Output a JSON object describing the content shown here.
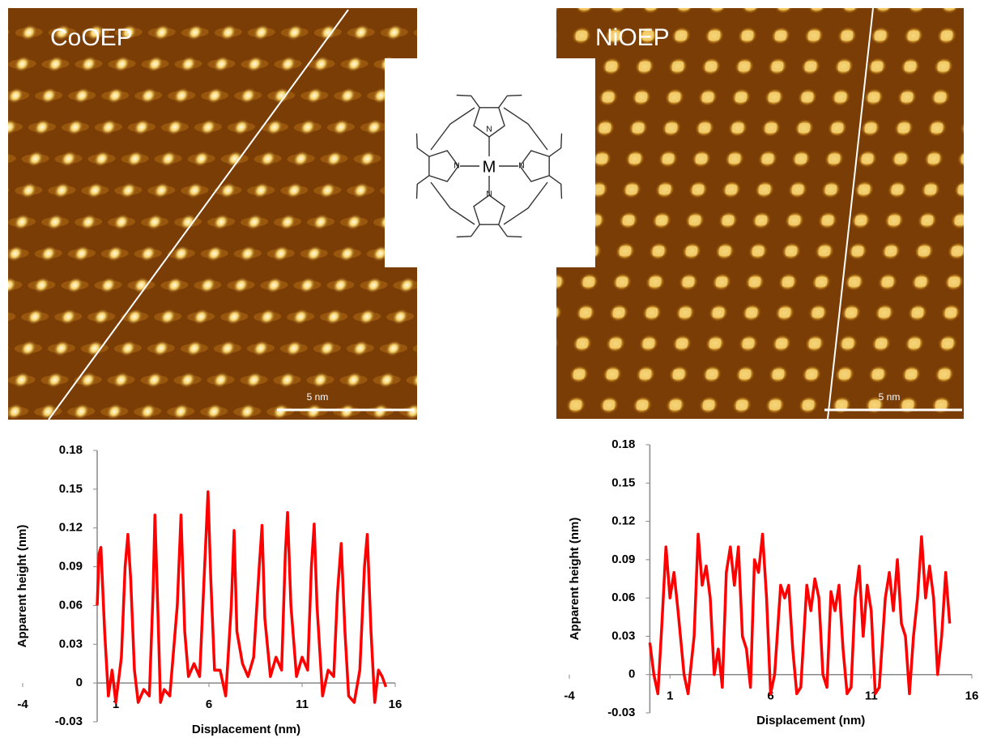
{
  "panels": [
    {
      "label": "CoOEP",
      "scale_bar": "5 nm"
    },
    {
      "label": "NiOEP",
      "scale_bar": "5 nm"
    }
  ],
  "molecule": {
    "metal": "M",
    "nitrogen": "N"
  },
  "chart_data": [
    {
      "type": "line",
      "color": "#ff0000",
      "xlabel": "Displacement (nm)",
      "ylabel": "Apparent height (nm)",
      "xlim": [
        -4,
        16
      ],
      "xticks": [
        -4,
        1,
        6,
        11,
        16
      ],
      "ylim": [
        -0.03,
        0.18
      ],
      "yticks": [
        -0.03,
        0,
        0.03,
        0.06,
        0.09,
        0.12,
        0.15,
        0.18
      ],
      "x": [
        0,
        0.1,
        0.2,
        0.4,
        0.6,
        0.8,
        1.0,
        1.3,
        1.5,
        1.65,
        1.8,
        2.0,
        2.2,
        2.5,
        2.8,
        3.0,
        3.1,
        3.25,
        3.4,
        3.6,
        3.9,
        4.3,
        4.5,
        4.7,
        4.9,
        5.2,
        5.5,
        5.8,
        5.95,
        6.1,
        6.3,
        6.6,
        6.9,
        7.2,
        7.35,
        7.5,
        7.8,
        8.1,
        8.4,
        8.7,
        8.85,
        9.0,
        9.3,
        9.6,
        9.9,
        10.1,
        10.22,
        10.4,
        10.7,
        11.0,
        11.3,
        11.5,
        11.65,
        11.8,
        12.1,
        12.4,
        12.7,
        12.9,
        13.1,
        13.3,
        13.5,
        13.8,
        14.1,
        14.35,
        14.5,
        14.7,
        14.9,
        15.1,
        15.3,
        15.5
      ],
      "values": [
        0.06,
        0.1,
        0.105,
        0.04,
        -0.01,
        0.01,
        -0.015,
        0.02,
        0.09,
        0.115,
        0.08,
        0.01,
        -0.015,
        -0.005,
        -0.01,
        0.07,
        0.13,
        0.06,
        -0.015,
        -0.005,
        -0.01,
        0.06,
        0.13,
        0.04,
        0.005,
        0.015,
        0.005,
        0.1,
        0.148,
        0.08,
        0.01,
        0.01,
        -0.01,
        0.06,
        0.118,
        0.04,
        0.015,
        0.005,
        0.02,
        0.09,
        0.122,
        0.05,
        0.005,
        0.02,
        0.01,
        0.1,
        0.132,
        0.06,
        0.005,
        0.02,
        0.01,
        0.09,
        0.123,
        0.06,
        -0.01,
        0.01,
        0.005,
        0.07,
        0.108,
        0.04,
        -0.01,
        -0.015,
        0.01,
        0.09,
        0.115,
        0.04,
        -0.015,
        0.01,
        0.005,
        -0.003
      ]
    },
    {
      "type": "line",
      "color": "#ff0000",
      "xlabel": "Displacement (nm)",
      "ylabel": "Apparent height (nm)",
      "xlim": [
        -4,
        16
      ],
      "xticks": [
        -4,
        1,
        6,
        11,
        16
      ],
      "ylim": [
        -0.03,
        0.18
      ],
      "yticks": [
        -0.03,
        0,
        0.03,
        0.06,
        0.09,
        0.12,
        0.15,
        0.18
      ],
      "x": [
        0,
        0.2,
        0.4,
        0.6,
        0.8,
        1.0,
        1.2,
        1.4,
        1.7,
        1.9,
        2.2,
        2.4,
        2.6,
        2.8,
        3.0,
        3.2,
        3.4,
        3.6,
        3.8,
        4.0,
        4.2,
        4.4,
        4.6,
        4.8,
        5.0,
        5.2,
        5.4,
        5.6,
        5.8,
        6.0,
        6.2,
        6.5,
        6.7,
        6.9,
        7.1,
        7.3,
        7.5,
        7.8,
        8.0,
        8.2,
        8.4,
        8.6,
        8.8,
        9.0,
        9.2,
        9.4,
        9.6,
        9.8,
        10.0,
        10.2,
        10.4,
        10.6,
        10.8,
        11.0,
        11.2,
        11.4,
        11.7,
        11.9,
        12.1,
        12.3,
        12.5,
        12.7,
        12.9,
        13.1,
        13.3,
        13.5,
        13.7,
        13.9,
        14.1,
        14.3,
        14.5,
        14.7,
        14.9
      ],
      "values": [
        0.025,
        0.0,
        -0.015,
        0.04,
        0.1,
        0.06,
        0.08,
        0.05,
        0.0,
        -0.015,
        0.03,
        0.11,
        0.07,
        0.085,
        0.06,
        0.0,
        0.02,
        -0.01,
        0.08,
        0.1,
        0.07,
        0.1,
        0.03,
        0.02,
        -0.01,
        0.09,
        0.08,
        0.11,
        0.06,
        -0.015,
        0.0,
        0.07,
        0.06,
        0.07,
        0.02,
        -0.015,
        -0.01,
        0.07,
        0.05,
        0.075,
        0.06,
        0.0,
        -0.01,
        0.065,
        0.05,
        0.07,
        0.02,
        -0.015,
        -0.01,
        0.06,
        0.085,
        0.03,
        0.07,
        0.05,
        -0.015,
        -0.01,
        0.06,
        0.08,
        0.05,
        0.09,
        0.04,
        0.03,
        -0.015,
        0.03,
        0.06,
        0.108,
        0.06,
        0.085,
        0.06,
        0.0,
        0.03,
        0.08,
        0.04
      ]
    }
  ]
}
